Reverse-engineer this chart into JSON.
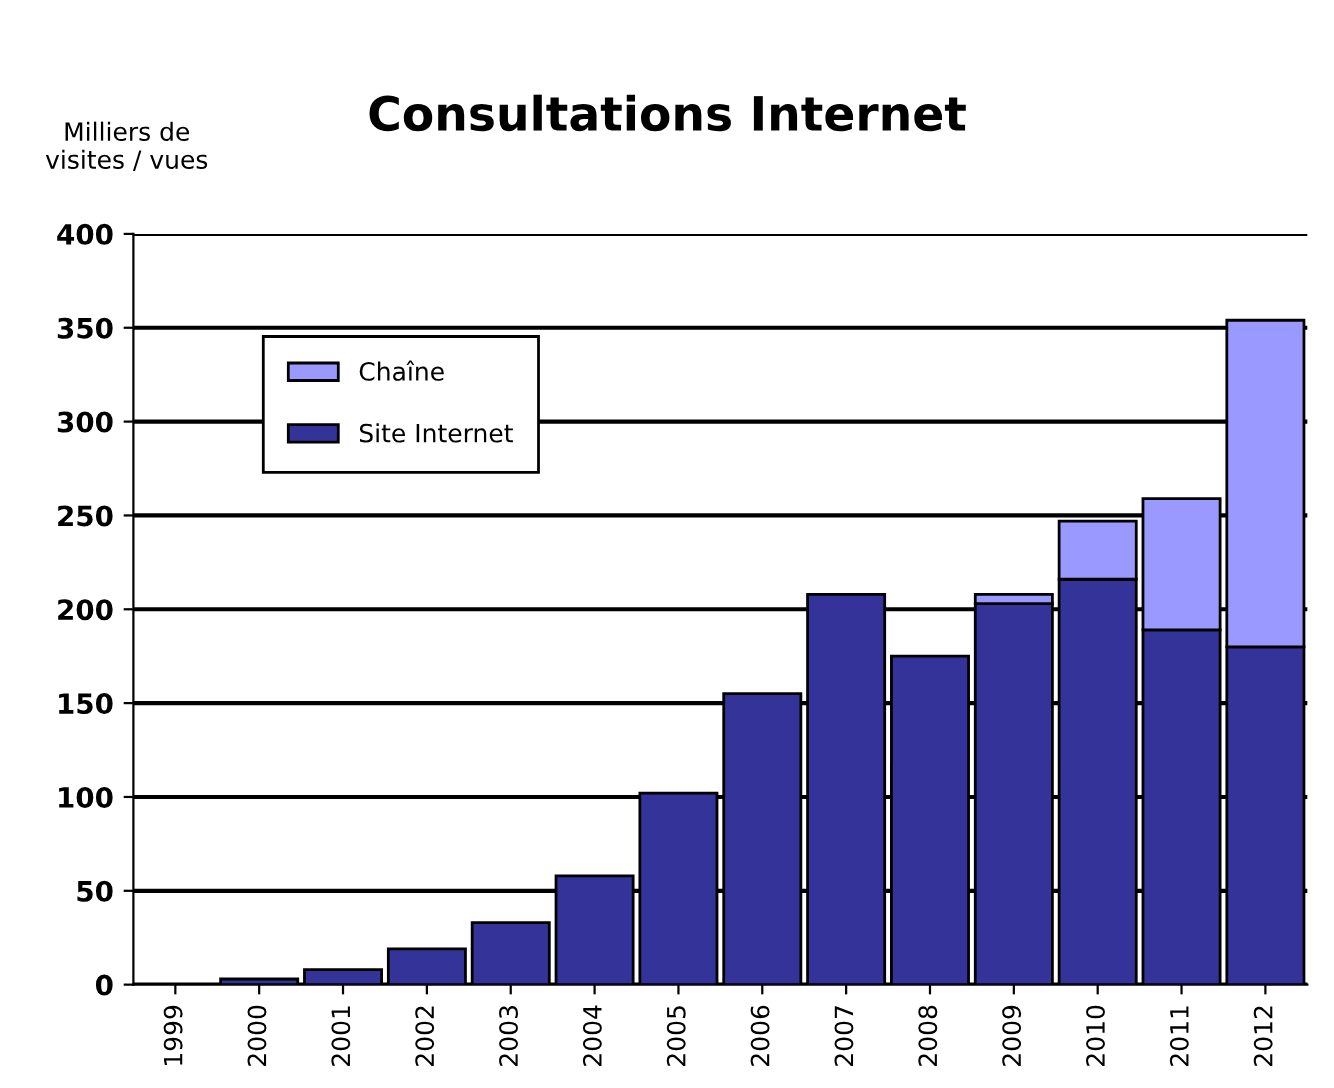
{
  "chart_data": {
    "type": "bar",
    "title": "Consultations Internet",
    "ylabel": "Milliers de\nvisites / vues",
    "categories": [
      "1999",
      "2000",
      "2001",
      "2002",
      "2003",
      "2004",
      "2005",
      "2006",
      "2007",
      "2008",
      "2009",
      "2010",
      "2011",
      "2012"
    ],
    "stacked": true,
    "series": [
      {
        "name": "Site Internet",
        "color": "#333399",
        "values": [
          null,
          3,
          8,
          19,
          33,
          58,
          102,
          155,
          208,
          175,
          203,
          216,
          189,
          180
        ]
      },
      {
        "name": "Chaîne",
        "color": "#9999ff",
        "values": [
          null,
          null,
          null,
          null,
          null,
          null,
          null,
          null,
          null,
          null,
          5,
          31,
          70,
          174
        ]
      }
    ],
    "ylim": [
      0,
      400
    ],
    "yticks": [
      0,
      50,
      100,
      150,
      200,
      250,
      300,
      350,
      400
    ],
    "grid": "y",
    "legend": "top left"
  }
}
